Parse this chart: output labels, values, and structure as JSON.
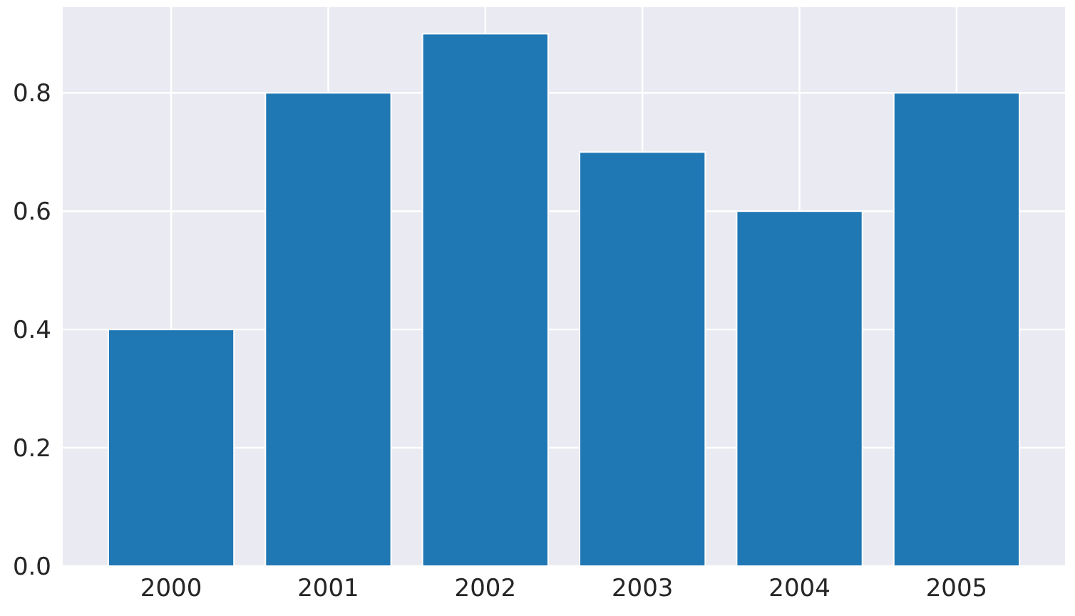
{
  "chart_data": {
    "type": "bar",
    "categories": [
      "2000",
      "2001",
      "2002",
      "2003",
      "2004",
      "2005"
    ],
    "values": [
      0.4,
      0.8,
      0.9,
      0.7,
      0.6,
      0.8
    ],
    "color": "#1f77b4",
    "ylim": [
      0,
      0.945
    ],
    "yticks": [
      {
        "value": 0,
        "label": "0.0"
      },
      {
        "value": 0.2,
        "label": "0.2"
      },
      {
        "value": 0.4,
        "label": "0.4"
      },
      {
        "value": 0.6,
        "label": "0.6"
      },
      {
        "value": 0.8,
        "label": "0.8"
      }
    ],
    "grid": true
  }
}
